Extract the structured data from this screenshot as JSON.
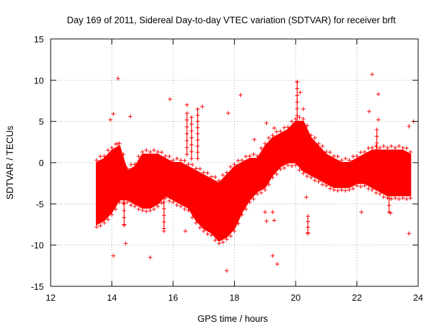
{
  "chart_data": {
    "type": "scatter",
    "title": "Day 169 of 2011, Sidereal Day-to-day VTEC variation (SDTVAR) for receiver brft",
    "xlabel": "GPS time / hours",
    "ylabel": "SDTVAR / TECUs",
    "xlim": [
      12,
      24
    ],
    "ylim": [
      -15,
      15
    ],
    "xticks": [
      "12",
      "14",
      "16",
      "18",
      "20",
      "22",
      "24"
    ],
    "yticks": [
      "-15",
      "-10",
      "-5",
      "0",
      "5",
      "10",
      "15"
    ],
    "grid": true,
    "marker": "+",
    "series_color": "#ff0000",
    "band": [
      [
        13.5,
        -7.5,
        0.0
      ],
      [
        13.75,
        -7.0,
        0.5
      ],
      [
        14.0,
        -6.0,
        1.5
      ],
      [
        14.25,
        -4.5,
        2.0
      ],
      [
        14.5,
        -4.5,
        -1.0
      ],
      [
        14.75,
        -5.0,
        -0.5
      ],
      [
        15.0,
        -5.5,
        1.0
      ],
      [
        15.25,
        -5.5,
        1.0
      ],
      [
        15.5,
        -5.0,
        1.0
      ],
      [
        15.75,
        -4.0,
        0.5
      ],
      [
        16.0,
        -4.5,
        0.0
      ],
      [
        16.25,
        -5.0,
        0.0
      ],
      [
        16.5,
        -5.5,
        -0.5
      ],
      [
        16.75,
        -7.0,
        -1.0
      ],
      [
        17.0,
        -8.0,
        -1.5
      ],
      [
        17.25,
        -8.5,
        -2.0
      ],
      [
        17.5,
        -9.5,
        -2.5
      ],
      [
        17.75,
        -9.0,
        -1.5
      ],
      [
        18.0,
        -8.0,
        -0.5
      ],
      [
        18.25,
        -6.0,
        0.0
      ],
      [
        18.5,
        -4.5,
        0.5
      ],
      [
        18.75,
        -3.5,
        0.5
      ],
      [
        19.0,
        -3.0,
        2.0
      ],
      [
        19.25,
        -1.5,
        3.0
      ],
      [
        19.5,
        -0.5,
        3.5
      ],
      [
        19.75,
        0.0,
        4.0
      ],
      [
        20.0,
        0.0,
        5.0
      ],
      [
        20.25,
        -1.0,
        5.0
      ],
      [
        20.5,
        -1.5,
        3.0
      ],
      [
        20.75,
        -2.0,
        2.0
      ],
      [
        21.0,
        -2.5,
        1.0
      ],
      [
        21.25,
        -3.0,
        0.5
      ],
      [
        21.5,
        -3.0,
        0.0
      ],
      [
        21.75,
        -3.0,
        0.0
      ],
      [
        22.0,
        -2.5,
        0.5
      ],
      [
        22.25,
        -2.5,
        1.0
      ],
      [
        22.5,
        -3.0,
        1.5
      ],
      [
        22.75,
        -3.5,
        1.5
      ],
      [
        23.0,
        -4.0,
        1.5
      ],
      [
        23.25,
        -4.0,
        1.5
      ],
      [
        23.5,
        -4.0,
        1.5
      ],
      [
        23.75,
        -4.0,
        1.0
      ]
    ],
    "outliers": [
      [
        14.2,
        10.2
      ],
      [
        14.05,
        5.9
      ],
      [
        13.95,
        5.2
      ],
      [
        14.6,
        5.6
      ],
      [
        15.9,
        7.7
      ],
      [
        16.45,
        7.0
      ],
      [
        16.95,
        6.8
      ],
      [
        17.8,
        6.0
      ],
      [
        18.2,
        8.2
      ],
      [
        18.65,
        2.8
      ],
      [
        19.05,
        4.8
      ],
      [
        19.3,
        4.2
      ],
      [
        20.05,
        9.8
      ],
      [
        20.15,
        8.5
      ],
      [
        20.25,
        6.5
      ],
      [
        22.5,
        10.7
      ],
      [
        22.7,
        8.3
      ],
      [
        22.4,
        6.2
      ],
      [
        22.7,
        5.2
      ],
      [
        23.7,
        4.4
      ],
      [
        23.85,
        5.0
      ],
      [
        14.05,
        -11.3
      ],
      [
        14.45,
        -9.8
      ],
      [
        15.25,
        -11.5
      ],
      [
        16.4,
        -8.3
      ],
      [
        17.75,
        -13.1
      ],
      [
        19.25,
        -11.3
      ],
      [
        19.4,
        -12.3
      ],
      [
        19.0,
        -6.0
      ],
      [
        19.25,
        -6.0
      ],
      [
        19.05,
        -7.1
      ],
      [
        19.3,
        -7.0
      ],
      [
        20.4,
        -8.6
      ],
      [
        20.35,
        -4.2
      ],
      [
        22.15,
        -6.0
      ],
      [
        23.1,
        -6.1
      ],
      [
        23.7,
        -8.6
      ],
      [
        14.4,
        -7.6
      ],
      [
        15.7,
        -8.3
      ],
      [
        13.6,
        -5.8
      ]
    ],
    "streaks": [
      [
        14.2,
        -2.0,
        2.3
      ],
      [
        14.4,
        -7.5,
        -2.5
      ],
      [
        15.7,
        -8.0,
        -4.0
      ],
      [
        16.45,
        1.0,
        6.0
      ],
      [
        16.6,
        0.5,
        5.5
      ],
      [
        16.8,
        0.5,
        6.5
      ],
      [
        20.05,
        0.0,
        9.8
      ],
      [
        20.4,
        -8.5,
        -6.5
      ],
      [
        22.65,
        0.0,
        4.0
      ],
      [
        23.05,
        -6.0,
        -3.5
      ]
    ]
  }
}
